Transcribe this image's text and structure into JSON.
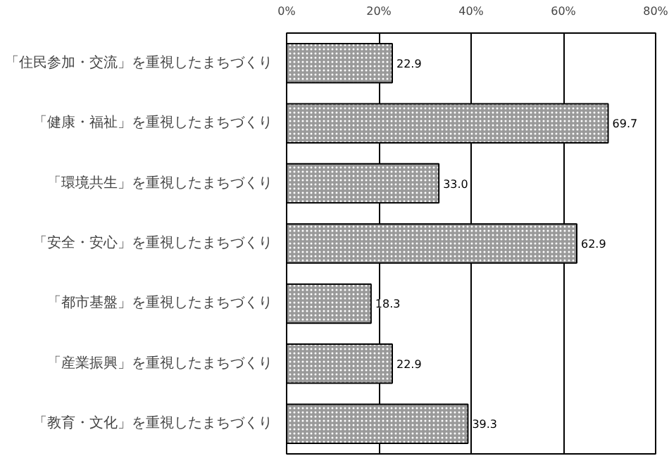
{
  "chart_data": {
    "type": "bar",
    "orientation": "horizontal",
    "categories": [
      "「住民参加・交流」を重視したまちづくり",
      "「健康・福祉」を重視したまちづくり",
      "「環境共生」を重視したまちづくり",
      "「安全・安心」を重視したまちづくり",
      "「都市基盤」を重視したまちづくり",
      "「産業振興」を重視したまちづくり",
      "「教育・文化」を重視したまちづくり"
    ],
    "values": [
      22.9,
      69.7,
      33.0,
      62.9,
      18.3,
      22.9,
      39.3
    ],
    "value_labels": [
      "22.9",
      "69.7",
      "33.0",
      "62.9",
      "18.3",
      "22.9",
      "39.3"
    ],
    "color": "#9a9a9a",
    "xlim": [
      0,
      80
    ],
    "xticks": [
      {
        "value": 0,
        "label": "0%"
      },
      {
        "value": 20,
        "label": "20%"
      },
      {
        "value": 40,
        "label": "40%"
      },
      {
        "value": 60,
        "label": "60%"
      },
      {
        "value": 80,
        "label": "80%"
      }
    ],
    "grid": "x"
  }
}
